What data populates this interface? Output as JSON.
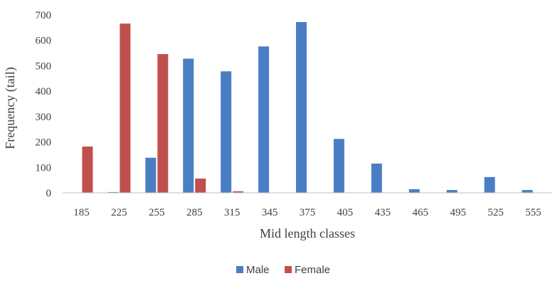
{
  "chart_data": {
    "type": "bar",
    "categories": [
      "185",
      "225",
      "255",
      "285",
      "315",
      "345",
      "375",
      "405",
      "435",
      "465",
      "495",
      "525",
      "555"
    ],
    "series": [
      {
        "name": "Male",
        "color": "#4a7ec4",
        "values": [
          0,
          3,
          138,
          528,
          478,
          576,
          672,
          212,
          115,
          14,
          11,
          62,
          11
        ]
      },
      {
        "name": "Female",
        "color": "#c0504d",
        "values": [
          182,
          666,
          546,
          56,
          6,
          0,
          0,
          0,
          0,
          0,
          0,
          0,
          0
        ]
      }
    ],
    "xlabel": "Mid length classes",
    "ylabel": "Frequency (tail)",
    "ylim": [
      0,
      700
    ],
    "yticks": [
      0,
      100,
      200,
      300,
      400,
      500,
      600,
      700
    ],
    "grid": false,
    "legend_position": "bottom"
  }
}
